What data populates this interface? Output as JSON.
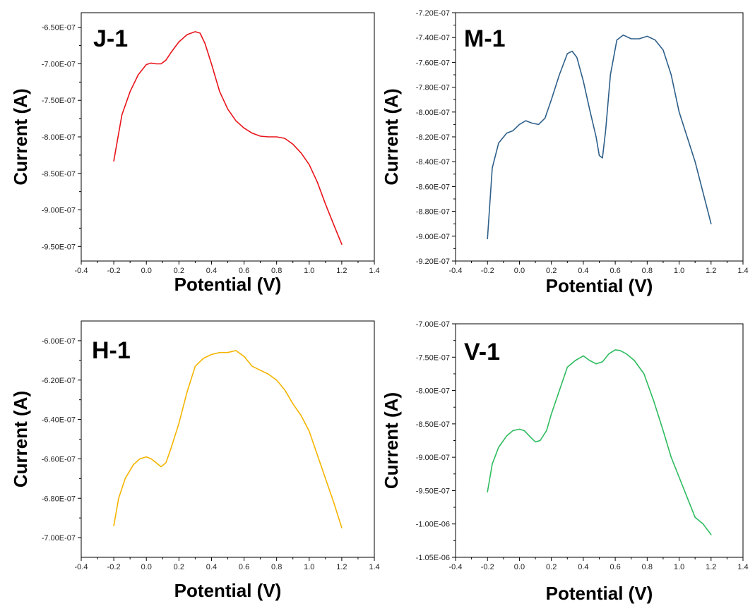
{
  "chart_data": [
    {
      "type": "line",
      "panel_label": "J-1",
      "xlabel": "Potential (V)",
      "ylabel": "Current (A)",
      "xlim": [
        -0.4,
        1.4
      ],
      "ylim": [
        -9.7e-07,
        -6.3e-07
      ],
      "x_ticks": [
        "-0.4",
        "-0.2",
        "0.0",
        "0.2",
        "0.4",
        "0.6",
        "0.8",
        "1.0",
        "1.2",
        "1.4"
      ],
      "y_ticks": [
        "-6.50E-07",
        "-7.00E-07",
        "-7.50E-07",
        "-8.00E-07",
        "-8.50E-07",
        "-9.00E-07",
        "-9.50E-07"
      ],
      "color": "#e8141b",
      "series": [
        {
          "x": [
            -0.2,
            -0.15,
            -0.1,
            -0.05,
            0.0,
            0.03,
            0.06,
            0.09,
            0.12,
            0.15,
            0.2,
            0.25,
            0.3,
            0.33,
            0.36,
            0.4,
            0.45,
            0.5,
            0.55,
            0.6,
            0.65,
            0.7,
            0.75,
            0.8,
            0.85,
            0.9,
            0.95,
            1.0,
            1.05,
            1.1,
            1.15,
            1.2
          ],
          "y": [
            -8.33e-07,
            -7.7e-07,
            -7.38e-07,
            -7.15e-07,
            -7.01e-07,
            -6.99e-07,
            -7e-07,
            -7e-07,
            -6.95e-07,
            -6.85e-07,
            -6.7e-07,
            -6.6e-07,
            -6.56e-07,
            -6.58e-07,
            -6.72e-07,
            -7e-07,
            -7.38e-07,
            -7.62e-07,
            -7.78e-07,
            -7.88e-07,
            -7.95e-07,
            -7.99e-07,
            -8e-07,
            -8e-07,
            -8.02e-07,
            -8.1e-07,
            -8.22e-07,
            -8.38e-07,
            -8.62e-07,
            -8.92e-07,
            -9.2e-07,
            -9.47e-07
          ]
        }
      ]
    },
    {
      "type": "line",
      "panel_label": "M-1",
      "xlabel": "Potential (V)",
      "ylabel": "Current (A)",
      "xlim": [
        -0.4,
        1.4
      ],
      "ylim": [
        -9.2e-07,
        -7.2e-07
      ],
      "x_ticks": [
        "-0.4",
        "-0.2",
        "0.0",
        "0.2",
        "0.4",
        "0.6",
        "0.8",
        "1.0",
        "1.2",
        "1.4"
      ],
      "y_ticks": [
        "-7.20E-07",
        "-7.40E-07",
        "-7.60E-07",
        "-7.80E-07",
        "-8.00E-07",
        "-8.20E-07",
        "-8.40E-07",
        "-8.60E-07",
        "-8.80E-07",
        "-9.00E-07",
        "-9.20E-07"
      ],
      "color": "#2e5f8a",
      "series": [
        {
          "x": [
            -0.2,
            -0.17,
            -0.13,
            -0.08,
            -0.04,
            0.0,
            0.04,
            0.08,
            0.12,
            0.16,
            0.2,
            0.25,
            0.3,
            0.33,
            0.36,
            0.4,
            0.44,
            0.48,
            0.5,
            0.52,
            0.54,
            0.57,
            0.61,
            0.65,
            0.7,
            0.75,
            0.8,
            0.85,
            0.9,
            0.95,
            1.0,
            1.05,
            1.1,
            1.15,
            1.2
          ],
          "y": [
            -9.02e-07,
            -8.45e-07,
            -8.25e-07,
            -8.17e-07,
            -8.15e-07,
            -8.1e-07,
            -8.07e-07,
            -8.09e-07,
            -8.1e-07,
            -8.05e-07,
            -7.9e-07,
            -7.7e-07,
            -7.53e-07,
            -7.51e-07,
            -7.56e-07,
            -7.75e-07,
            -7.98e-07,
            -8.2e-07,
            -8.35e-07,
            -8.37e-07,
            -8.15e-07,
            -7.7e-07,
            -7.42e-07,
            -7.38e-07,
            -7.41e-07,
            -7.41e-07,
            -7.39e-07,
            -7.42e-07,
            -7.5e-07,
            -7.7e-07,
            -8e-07,
            -8.2e-07,
            -8.4e-07,
            -8.65e-07,
            -8.9e-07
          ]
        }
      ]
    },
    {
      "type": "line",
      "panel_label": "H-1",
      "xlabel": "Potential (V)",
      "ylabel": "Current (A)",
      "xlim": [
        -0.4,
        1.4
      ],
      "ylim": [
        -7.1e-07,
        -5.9e-07
      ],
      "x_ticks": [
        "-0.4",
        "-0.2",
        "0.0",
        "0.2",
        "0.4",
        "0.6",
        "0.8",
        "1.0",
        "1.2",
        "1.4"
      ],
      "y_ticks": [
        "-6.00E-07",
        "-6.20E-07",
        "-6.40E-07",
        "-6.60E-07",
        "-6.80E-07",
        "-7.00E-07"
      ],
      "color": "#f5b400",
      "series": [
        {
          "x": [
            -0.2,
            -0.17,
            -0.13,
            -0.08,
            -0.04,
            0.0,
            0.03,
            0.06,
            0.09,
            0.12,
            0.15,
            0.2,
            0.25,
            0.3,
            0.35,
            0.4,
            0.45,
            0.5,
            0.55,
            0.6,
            0.65,
            0.7,
            0.75,
            0.8,
            0.85,
            0.9,
            0.95,
            1.0,
            1.05,
            1.1,
            1.15,
            1.2
          ],
          "y": [
            -6.94e-07,
            -6.8e-07,
            -6.7e-07,
            -6.63e-07,
            -6.6e-07,
            -6.59e-07,
            -6.6e-07,
            -6.62e-07,
            -6.64e-07,
            -6.62e-07,
            -6.55e-07,
            -6.42e-07,
            -6.26e-07,
            -6.13e-07,
            -6.09e-07,
            -6.07e-07,
            -6.06e-07,
            -6.06e-07,
            -6.05e-07,
            -6.08e-07,
            -6.13e-07,
            -6.15e-07,
            -6.17e-07,
            -6.2e-07,
            -6.25e-07,
            -6.32e-07,
            -6.38e-07,
            -6.46e-07,
            -6.58e-07,
            -6.7e-07,
            -6.82e-07,
            -6.95e-07
          ]
        }
      ]
    },
    {
      "type": "line",
      "panel_label": "V-1",
      "xlabel": "Potential (V)",
      "ylabel": "Current (A)",
      "xlim": [
        -0.4,
        1.4
      ],
      "ylim": [
        -1.05e-06,
        -7e-07
      ],
      "x_ticks": [
        "-0.4",
        "-0.2",
        "0.0",
        "0.2",
        "0.4",
        "0.6",
        "0.8",
        "1.0",
        "1.2",
        "1.4"
      ],
      "y_ticks": [
        "-7.00E-07",
        "-7.50E-07",
        "-8.00E-07",
        "-8.50E-07",
        "-9.00E-07",
        "-9.50E-07",
        "-1.00E-06",
        "-1.05E-06"
      ],
      "color": "#2dbb5e",
      "series": [
        {
          "x": [
            -0.2,
            -0.17,
            -0.13,
            -0.08,
            -0.04,
            0.0,
            0.03,
            0.07,
            0.1,
            0.13,
            0.17,
            0.2,
            0.25,
            0.3,
            0.35,
            0.4,
            0.44,
            0.48,
            0.52,
            0.56,
            0.6,
            0.63,
            0.67,
            0.72,
            0.78,
            0.84,
            0.9,
            0.95,
            1.0,
            1.05,
            1.1,
            1.15,
            1.2
          ],
          "y": [
            -9.52e-07,
            -9.1e-07,
            -8.85e-07,
            -8.68e-07,
            -8.6e-07,
            -8.58e-07,
            -8.6e-07,
            -8.7e-07,
            -8.77e-07,
            -8.75e-07,
            -8.6e-07,
            -8.35e-07,
            -8e-07,
            -7.65e-07,
            -7.55e-07,
            -7.48e-07,
            -7.55e-07,
            -7.6e-07,
            -7.57e-07,
            -7.45e-07,
            -7.39e-07,
            -7.4e-07,
            -7.45e-07,
            -7.55e-07,
            -7.75e-07,
            -8.15e-07,
            -8.6e-07,
            -9e-07,
            -9.3e-07,
            -9.6e-07,
            -9.9e-07,
            -1e-06,
            -1.016e-06
          ]
        }
      ]
    }
  ]
}
